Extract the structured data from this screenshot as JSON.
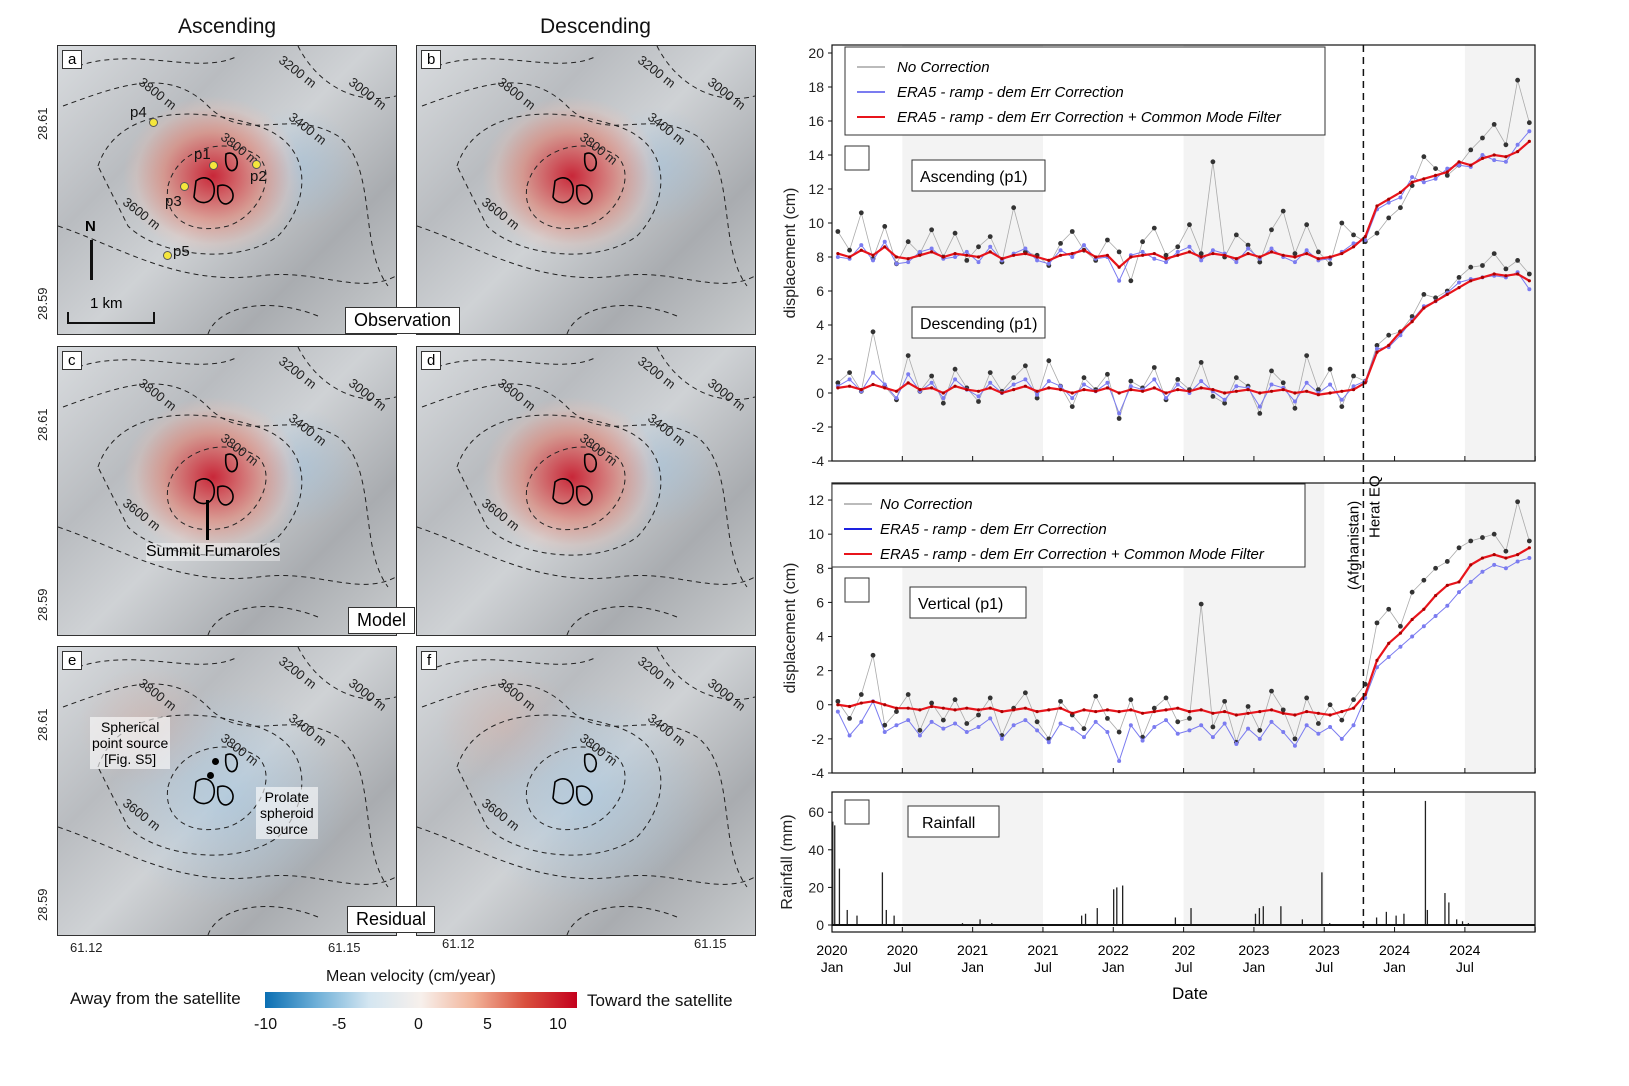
{
  "maps": {
    "column_titles": [
      "Ascending",
      "Descending"
    ],
    "panels": [
      {
        "letter": "a",
        "signal": "uplift"
      },
      {
        "letter": "b",
        "signal": "uplift"
      },
      {
        "letter": "c",
        "signal": "uplift"
      },
      {
        "letter": "d",
        "signal": "uplift"
      },
      {
        "letter": "e",
        "signal": "residual"
      },
      {
        "letter": "f",
        "signal": "residual"
      }
    ],
    "contour_labels": [
      "3800 m",
      "3200 m",
      "3000 m",
      "3400 m",
      "3800 m",
      "3600 m"
    ],
    "row_labels": [
      "Observation",
      "Model",
      "Residual"
    ],
    "points": [
      "p1",
      "p2",
      "p3",
      "p4",
      "p5"
    ],
    "point_color": "#f5e63c",
    "north": "N",
    "scale": "1 km",
    "lat_ticks": [
      "28.61",
      "28.59"
    ],
    "lon_ticks": [
      "61.12",
      "61.15"
    ],
    "annotations": {
      "fumaroles": "Summit Fumaroles",
      "spherical_1": "Spherical",
      "spherical_2": "point source",
      "spherical_3": "[Fig. S5]",
      "prolate_1": "Prolate",
      "prolate_2": "spheroid",
      "prolate_3": "source"
    },
    "colorbar": {
      "title": "Mean velocity (cm/year)",
      "left": "Away from the satellite",
      "right": "Toward the satellite",
      "ticks": [
        "-10",
        "-5",
        "0",
        "5",
        "10"
      ],
      "colors": [
        "#0b6fb3",
        "#f7f0ec",
        "#c4001d"
      ]
    }
  },
  "chart_data": [
    {
      "type": "line",
      "panel": "g",
      "ylabel": "displacement (cm)",
      "ylim": [
        -4,
        20
      ],
      "yticks": [
        -4,
        -2,
        0,
        2,
        4,
        6,
        8,
        10,
        12,
        14,
        16,
        18,
        20
      ],
      "legend": [
        "No Correction",
        "ERA5 - ramp - dem Err Correction",
        "ERA5 - ramp - dem Err Correction + Common Mode Filter"
      ],
      "legend_placement": "top-left",
      "labels": [
        "Ascending (p1)",
        "Descending (p1)"
      ],
      "colors": {
        "no_correction": "#555555",
        "era5": "#7b7cf0",
        "cmf": "#e8141b"
      },
      "groups": [
        {
          "name": "Ascending (p1)",
          "no_correction": [
            9.5,
            8.4,
            10.6,
            7.9,
            9.8,
            7.6,
            8.9,
            8.2,
            9.6,
            8.0,
            9.4,
            7.8,
            8.6,
            9.2,
            7.7,
            10.9,
            8.3,
            8.1,
            7.5,
            8.8,
            9.5,
            8.4,
            7.8,
            9.0,
            8.3,
            6.6,
            8.9,
            9.7,
            8.1,
            8.6,
            9.9,
            8.2,
            13.6,
            8.0,
            9.3,
            8.7,
            7.7,
            9.6,
            10.7,
            8.2,
            9.9,
            8.3,
            7.6,
            10.0,
            9.3,
            8.9,
            9.4,
            10.3,
            10.9,
            12.2,
            13.9,
            13.2,
            12.8,
            13.4,
            14.3,
            15.0,
            15.8,
            14.6,
            18.4,
            15.9
          ],
          "era5": [
            8.0,
            7.9,
            8.7,
            7.8,
            8.9,
            7.6,
            7.7,
            8.3,
            8.5,
            7.9,
            8.0,
            8.3,
            7.7,
            8.6,
            7.8,
            8.2,
            8.5,
            7.8,
            7.6,
            8.4,
            8.0,
            8.7,
            7.9,
            8.0,
            6.6,
            8.1,
            8.3,
            7.9,
            7.7,
            8.3,
            8.6,
            7.8,
            8.4,
            8.2,
            7.7,
            8.5,
            7.9,
            8.5,
            8.0,
            7.7,
            8.4,
            7.8,
            7.9,
            8.3,
            8.8,
            9.0,
            10.8,
            11.2,
            11.5,
            12.7,
            12.4,
            12.6,
            13.2,
            13.4,
            13.3,
            14.0,
            13.7,
            13.6,
            14.6,
            15.4
          ],
          "cmf": [
            8.2,
            8.0,
            8.4,
            8.1,
            8.6,
            8.0,
            7.9,
            8.1,
            8.3,
            8.0,
            8.2,
            8.1,
            8.0,
            8.3,
            7.9,
            8.1,
            8.2,
            8.0,
            7.8,
            8.1,
            8.2,
            8.4,
            8.0,
            8.1,
            7.4,
            8.0,
            8.1,
            8.2,
            7.9,
            8.1,
            8.3,
            8.0,
            8.2,
            8.1,
            7.9,
            8.2,
            8.0,
            8.3,
            8.1,
            8.0,
            8.2,
            7.9,
            8.0,
            8.2,
            8.6,
            9.2,
            11.0,
            11.4,
            11.8,
            12.4,
            12.6,
            12.8,
            13.0,
            13.6,
            13.4,
            13.8,
            14.0,
            13.9,
            14.2,
            14.8
          ]
        },
        {
          "name": "Descending (p1)",
          "no_correction": [
            0.6,
            1.2,
            0.1,
            3.6,
            0.4,
            -0.4,
            2.2,
            0.1,
            1.0,
            -0.6,
            1.4,
            0.3,
            -0.5,
            1.2,
            0.1,
            0.9,
            1.6,
            -0.3,
            1.9,
            0.4,
            -0.8,
            0.9,
            0.2,
            1.1,
            -1.5,
            0.7,
            0.3,
            1.5,
            -0.4,
            0.8,
            0.2,
            1.8,
            -0.2,
            -0.6,
            0.9,
            0.4,
            -1.2,
            1.3,
            0.6,
            -0.9,
            2.2,
            0.2,
            1.4,
            -0.8,
            1.0,
            0.7,
            2.8,
            3.4,
            3.6,
            4.5,
            5.8,
            5.6,
            6.0,
            6.8,
            7.4,
            7.5,
            8.2,
            7.3,
            7.8,
            7.0
          ],
          "era5": [
            0.4,
            0.8,
            0.1,
            1.2,
            0.5,
            -0.3,
            1.1,
            0.1,
            0.6,
            -0.3,
            0.8,
            0.2,
            -0.2,
            0.6,
            0.0,
            0.5,
            0.8,
            -0.1,
            0.7,
            0.4,
            -0.3,
            0.5,
            0.1,
            0.6,
            -1.2,
            0.4,
            0.2,
            0.8,
            -0.3,
            0.5,
            0.0,
            0.7,
            0.1,
            -0.4,
            0.4,
            0.3,
            -0.8,
            0.5,
            0.3,
            -0.5,
            0.6,
            0.0,
            0.5,
            -0.4,
            0.4,
            0.7,
            2.6,
            2.7,
            3.4,
            4.3,
            5.1,
            5.4,
            5.9,
            6.5,
            6.7,
            6.8,
            6.9,
            6.8,
            7.1,
            6.1
          ],
          "cmf": [
            0.3,
            0.4,
            0.2,
            0.5,
            0.3,
            0.1,
            0.6,
            0.2,
            0.3,
            0.0,
            0.4,
            0.2,
            0.1,
            0.3,
            0.0,
            0.2,
            0.4,
            0.1,
            0.3,
            0.2,
            0.0,
            0.2,
            0.1,
            0.3,
            0.0,
            0.2,
            0.1,
            0.3,
            0.0,
            0.2,
            0.1,
            0.3,
            0.2,
            0.0,
            0.1,
            0.2,
            0.0,
            0.1,
            0.2,
            0.0,
            0.1,
            -0.1,
            0.0,
            0.1,
            0.2,
            0.6,
            2.4,
            2.8,
            3.6,
            4.2,
            5.0,
            5.4,
            5.8,
            6.2,
            6.6,
            6.8,
            7.0,
            6.9,
            7.0,
            6.6
          ]
        }
      ],
      "event_line": {
        "date": "2023-10",
        "label_1": "Herat EQ",
        "label_2": "(Afghanistan)"
      }
    },
    {
      "type": "line",
      "panel": "h",
      "ylabel": "displacement (cm)",
      "ylim": [
        -4,
        13
      ],
      "yticks": [
        -4,
        -2,
        0,
        2,
        4,
        6,
        8,
        10,
        12
      ],
      "legend": [
        "No Correction",
        "ERA5 - ramp - dem Err Correction",
        "ERA5 - ramp - dem Err Correction + Common Mode Filter"
      ],
      "legend_colors": [
        "#555555",
        "#1d22e0",
        "#e8141b"
      ],
      "legend_placement": "top-left",
      "labels": [
        "Vertical (p1)"
      ],
      "groups": [
        {
          "name": "Vertical (p1)",
          "no_correction": [
            0.2,
            -0.8,
            0.6,
            2.9,
            -1.2,
            -0.4,
            0.6,
            -1.5,
            0.1,
            -0.9,
            0.3,
            -1.1,
            -0.6,
            0.4,
            -1.8,
            -0.2,
            0.7,
            -1.0,
            -2.0,
            0.2,
            -0.6,
            -1.4,
            0.5,
            -0.8,
            -1.6,
            0.3,
            -1.9,
            -0.2,
            0.4,
            -1.0,
            -0.8,
            5.9,
            -1.3,
            0.2,
            -2.2,
            -0.1,
            -1.5,
            0.8,
            -0.3,
            -2.0,
            0.4,
            -1.1,
            0.0,
            -0.9,
            0.3,
            1.2,
            4.8,
            5.6,
            4.6,
            6.6,
            7.3,
            8.0,
            8.4,
            9.2,
            9.6,
            9.8,
            10.0,
            9.0,
            11.9,
            9.6
          ],
          "era5": [
            -0.4,
            -1.8,
            -1.0,
            0.2,
            -1.6,
            -1.2,
            -0.9,
            -1.8,
            -1.0,
            -1.4,
            -1.1,
            -1.6,
            -1.3,
            -0.8,
            -2.0,
            -1.2,
            -0.9,
            -1.5,
            -2.2,
            -1.1,
            -1.4,
            -1.9,
            -1.0,
            -1.6,
            -3.3,
            -1.2,
            -2.1,
            -1.3,
            -0.9,
            -1.7,
            -1.5,
            -1.2,
            -1.9,
            -1.1,
            -2.3,
            -1.4,
            -2.0,
            -1.0,
            -1.6,
            -2.4,
            -1.2,
            -1.7,
            -1.3,
            -2.0,
            -1.2,
            0.4,
            2.2,
            2.8,
            3.4,
            4.0,
            4.6,
            5.2,
            5.8,
            6.6,
            7.2,
            7.8,
            8.2,
            8.0,
            8.4,
            8.6
          ],
          "cmf": [
            0.0,
            -0.1,
            0.1,
            0.2,
            0.0,
            -0.2,
            -0.2,
            -0.3,
            -0.1,
            -0.2,
            -0.3,
            -0.2,
            -0.3,
            -0.2,
            -0.4,
            -0.3,
            -0.2,
            -0.4,
            -0.3,
            -0.2,
            -0.5,
            -0.3,
            -0.4,
            -0.3,
            -0.4,
            -0.3,
            -0.5,
            -0.4,
            -0.3,
            -0.2,
            -0.4,
            -0.3,
            -0.5,
            -0.4,
            -0.6,
            -0.5,
            -0.4,
            -0.3,
            -0.5,
            -0.6,
            -0.4,
            -0.5,
            -0.6,
            -0.4,
            -0.2,
            0.6,
            2.6,
            3.6,
            4.2,
            5.0,
            5.6,
            6.4,
            7.0,
            7.2,
            8.2,
            8.6,
            8.8,
            8.6,
            8.8,
            9.2
          ]
        }
      ]
    },
    {
      "type": "bar",
      "panel": "i",
      "label": "Rainfall",
      "ylabel": "Rainfall (mm)",
      "ylim": [
        0,
        70
      ],
      "yticks": [
        0,
        20,
        40,
        60
      ],
      "bars": [
        [
          "2020-01-03",
          55
        ],
        [
          "2020-01-08",
          53
        ],
        [
          "2020-01-20",
          30
        ],
        [
          "2020-02-10",
          8
        ],
        [
          "2020-03-05",
          5
        ],
        [
          "2020-05-10",
          28
        ],
        [
          "2020-05-20",
          8
        ],
        [
          "2020-06-10",
          5
        ],
        [
          "2020-12-05",
          1
        ],
        [
          "2021-01-20",
          3
        ],
        [
          "2021-02-20",
          1
        ],
        [
          "2021-10-10",
          5
        ],
        [
          "2021-10-20",
          6
        ],
        [
          "2021-11-20",
          9
        ],
        [
          "2022-01-02",
          19
        ],
        [
          "2022-01-10",
          20
        ],
        [
          "2022-01-25",
          21
        ],
        [
          "2022-06-10",
          4
        ],
        [
          "2022-07-20",
          9
        ],
        [
          "2023-01-05",
          6
        ],
        [
          "2023-01-15",
          9
        ],
        [
          "2023-01-25",
          10
        ],
        [
          "2023-03-10",
          10
        ],
        [
          "2023-05-05",
          3
        ],
        [
          "2023-06-25",
          28
        ],
        [
          "2023-07-15",
          1
        ],
        [
          "2023-11-15",
          4
        ],
        [
          "2023-12-10",
          7
        ],
        [
          "2024-01-05",
          5
        ],
        [
          "2024-01-25",
          6
        ],
        [
          "2024-03-20",
          66
        ],
        [
          "2024-03-25",
          8
        ],
        [
          "2024-05-10",
          17
        ],
        [
          "2024-05-20",
          12
        ],
        [
          "2024-06-10",
          3
        ],
        [
          "2024-06-25",
          2
        ],
        [
          "2024-07-10",
          1
        ]
      ],
      "color": "#222222"
    }
  ],
  "x_axis": {
    "label": "Date",
    "start": "2020-01",
    "tick_labels": [
      [
        "2020",
        "Jan"
      ],
      [
        "2020",
        "Jul"
      ],
      [
        "2021",
        "Jan"
      ],
      [
        "2021",
        "Jul"
      ],
      [
        "2022",
        "Jan"
      ],
      [
        "202",
        "Jul"
      ],
      [
        "2023",
        "Jan"
      ],
      [
        "2023",
        "Jul"
      ],
      [
        "2024",
        "Jan"
      ],
      [
        "2024",
        "Jul"
      ]
    ],
    "shaded_periods": [
      [
        "2020-07",
        "2021-07"
      ],
      [
        "2022-07",
        "2023-07"
      ],
      [
        "2024-07",
        "2025-01"
      ]
    ],
    "shade_color": "#f3f3f3"
  }
}
